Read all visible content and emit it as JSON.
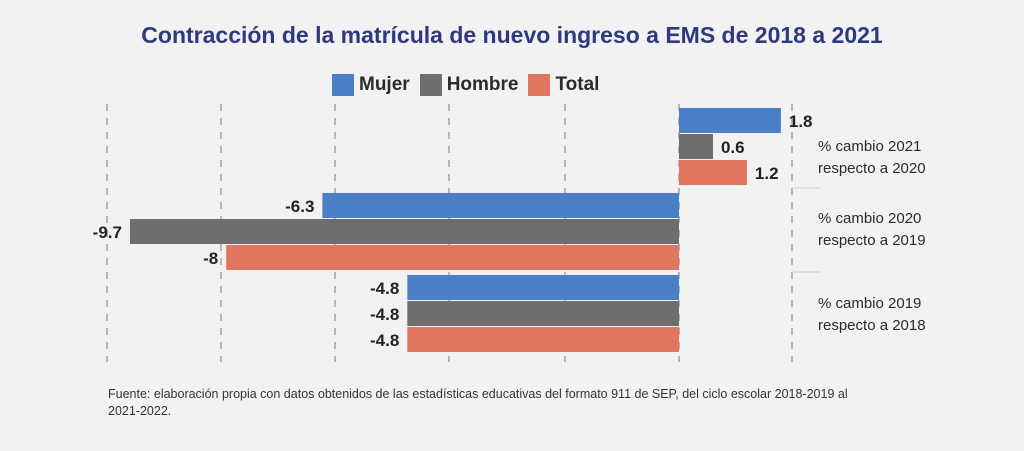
{
  "chart_data": {
    "type": "bar",
    "orientation": "horizontal",
    "title": "Contracción de la matrícula de nuevo ingreso a EMS de 2018 a 2021",
    "categories": [
      [
        "% cambio 2021",
        "respecto a 2020"
      ],
      [
        "% cambio 2020",
        "respecto a 2019"
      ],
      [
        "% cambio 2019",
        "respecto a 2018"
      ]
    ],
    "series": [
      {
        "name": "Mujer",
        "color": "#4a7fc6",
        "values": [
          1.8,
          -6.3,
          -4.8
        ],
        "labels": [
          "1.8",
          "-6.3",
          "-4.8"
        ]
      },
      {
        "name": "Hombre",
        "color": "#6e6e70",
        "values": [
          0.6,
          -9.7,
          -4.8
        ],
        "labels": [
          "0.6",
          "-9.7",
          "-4.8"
        ]
      },
      {
        "name": "Total",
        "color": "#e07560",
        "values": [
          1.2,
          -8,
          -4.8
        ],
        "labels": [
          "1.2",
          "-8",
          "-4.8"
        ]
      }
    ],
    "xlim": [
      -10,
      2
    ],
    "grid": true,
    "legend_position": "top"
  },
  "source": {
    "text": "Fuente: elaboración propia con datos obtenidos de las estadísticas educativas del formato 911 de SEP, del ciclo escolar 2018-2019 al 2021-2022."
  }
}
